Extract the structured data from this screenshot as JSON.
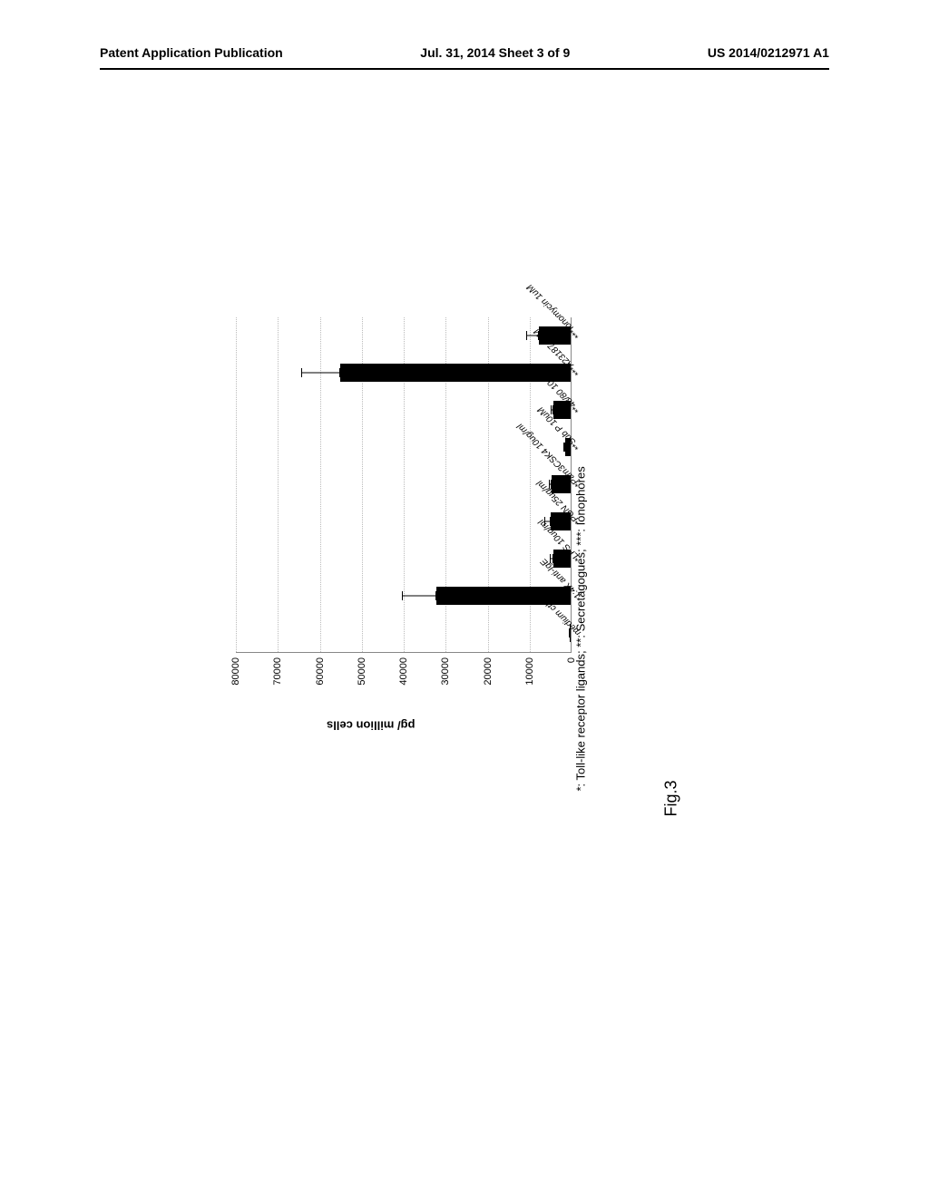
{
  "header": {
    "left": "Patent Application Publication",
    "center": "Jul. 31, 2014  Sheet 3 of 9",
    "right": "US 2014/0212971 A1"
  },
  "chart": {
    "type": "bar",
    "y_axis_label": "pg/ million cells",
    "ylim": [
      0,
      80000
    ],
    "ytick_step": 10000,
    "y_ticks": [
      0,
      10000,
      20000,
      30000,
      40000,
      50000,
      60000,
      70000,
      80000
    ],
    "bar_color": "#000000",
    "grid_color": "#bbbbbb",
    "background_color": "#ffffff",
    "categories": [
      "medium ctl",
      "1:4X anti-IgE",
      "*LPS 10ug/ml",
      "*PGN 25ug/ml",
      "*Pam3CSK4 10ug/ml",
      "**Sub P 10uM",
      "**48/80 10ug/ml",
      "***A23187 1uM",
      "***Ionomycin 1uM"
    ],
    "values": [
      200,
      32000,
      4200,
      4800,
      4500,
      1200,
      4200,
      55000,
      7500
    ],
    "errors": [
      100,
      8000,
      500,
      1200,
      400,
      300,
      300,
      9000,
      2800
    ]
  },
  "legend_note": "*: Toll-like receptor ligands; **: Secretagogues; ***: Ionophores",
  "figure_label": "Fig.3"
}
